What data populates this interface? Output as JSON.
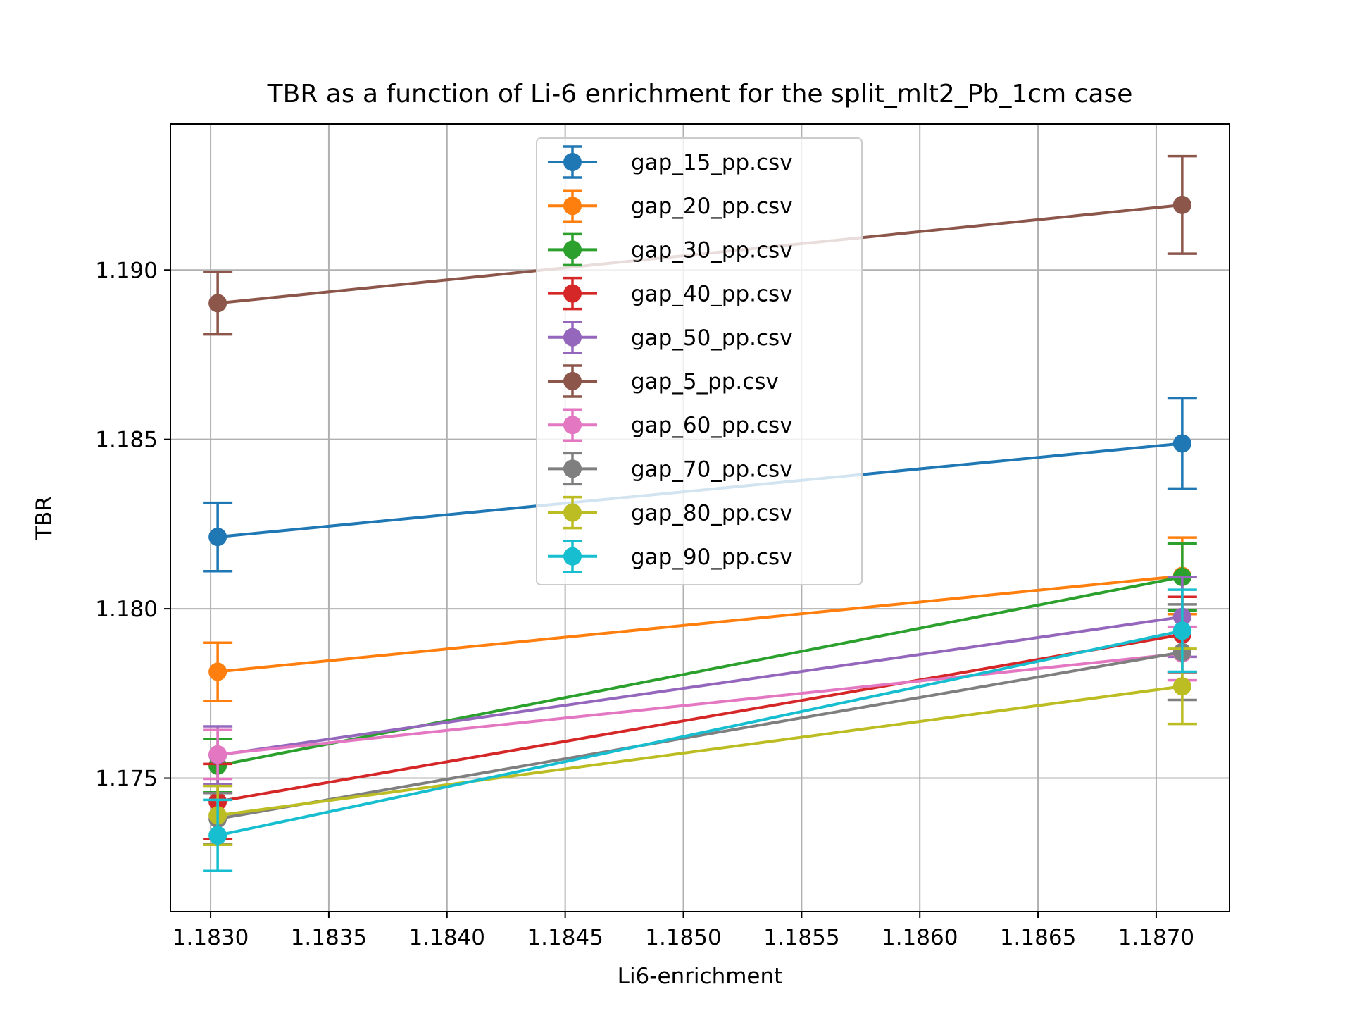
{
  "chart_data": {
    "type": "line",
    "title": "TBR as a function of Li-6 enrichment for the split_mlt2_Pb_1cm case",
    "xlabel": "Li6-enrichment",
    "ylabel": "TBR",
    "xlim": [
      1.18283,
      1.18731
    ],
    "ylim": [
      1.17106,
      1.19431
    ],
    "xticks": [
      1.183,
      1.1835,
      1.184,
      1.1845,
      1.185,
      1.1855,
      1.186,
      1.1865,
      1.187
    ],
    "xtick_labels": [
      "1.1830",
      "1.1835",
      "1.1840",
      "1.1845",
      "1.1850",
      "1.1855",
      "1.1860",
      "1.1865",
      "1.1870"
    ],
    "yticks": [
      1.175,
      1.18,
      1.185,
      1.19
    ],
    "ytick_labels": [
      "1.175",
      "1.180",
      "1.185",
      "1.190"
    ],
    "grid": true,
    "legend_position": "top-center",
    "x": [
      1.18303,
      1.18711
    ],
    "series": [
      {
        "name": "gap_15_pp.csv",
        "color": "#1f77b4",
        "values": [
          1.18212,
          1.18488
        ],
        "errors": [
          0.00101,
          0.00133
        ]
      },
      {
        "name": "gap_20_pp.csv",
        "color": "#ff7f0e",
        "values": [
          1.17814,
          1.18097
        ],
        "errors": [
          0.00086,
          0.00113
        ]
      },
      {
        "name": "gap_30_pp.csv",
        "color": "#2ca02c",
        "values": [
          1.17537,
          1.18094
        ],
        "errors": [
          0.00079,
          0.00099
        ]
      },
      {
        "name": "gap_40_pp.csv",
        "color": "#d62728",
        "values": [
          1.17431,
          1.17924
        ],
        "errors": [
          0.00111,
          0.00111
        ]
      },
      {
        "name": "gap_50_pp.csv",
        "color": "#9467bd",
        "values": [
          1.17568,
          1.17976
        ],
        "errors": [
          0.00085,
          0.00118
        ]
      },
      {
        "name": "gap_5_pp.csv",
        "color": "#8c564b",
        "values": [
          1.18902,
          1.19192
        ],
        "errors": [
          0.00092,
          0.00144
        ]
      },
      {
        "name": "gap_60_pp.csv",
        "color": "#e377c2",
        "values": [
          1.1757,
          1.17868
        ],
        "errors": [
          0.00072,
          0.00079
        ]
      },
      {
        "name": "gap_70_pp.csv",
        "color": "#7f7f7f",
        "values": [
          1.1738,
          1.17872
        ],
        "errors": [
          0.00076,
          0.00141
        ]
      },
      {
        "name": "gap_80_pp.csv",
        "color": "#bcbd22",
        "values": [
          1.1739,
          1.17771
        ],
        "errors": [
          0.00087,
          0.00111
        ]
      },
      {
        "name": "gap_90_pp.csv",
        "color": "#17becf",
        "values": [
          1.17331,
          1.17935
        ],
        "errors": [
          0.00105,
          0.00121
        ]
      }
    ]
  }
}
